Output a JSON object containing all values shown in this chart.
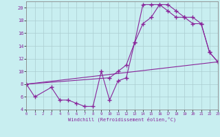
{
  "xlabel": "Windchill (Refroidissement éolien,°C)",
  "xlim": [
    0,
    23
  ],
  "ylim": [
    4,
    21
  ],
  "yticks": [
    4,
    6,
    8,
    10,
    12,
    14,
    16,
    18,
    20
  ],
  "xticks": [
    0,
    1,
    2,
    3,
    4,
    5,
    6,
    7,
    8,
    9,
    10,
    11,
    12,
    13,
    14,
    15,
    16,
    17,
    18,
    19,
    20,
    21,
    22,
    23
  ],
  "background_color": "#c8eef0",
  "grid_color": "#aaccd0",
  "line_color": "#882299",
  "curve1_x": [
    0,
    1,
    3,
    4,
    5,
    6,
    7,
    8,
    9,
    10,
    11,
    12,
    13,
    14,
    15,
    16,
    17,
    18,
    19,
    20,
    21,
    22,
    23
  ],
  "curve1_y": [
    8.0,
    6.0,
    7.5,
    5.5,
    5.5,
    5.0,
    4.5,
    4.5,
    10.0,
    5.5,
    8.5,
    9.0,
    14.5,
    17.5,
    18.5,
    20.5,
    20.5,
    19.5,
    18.5,
    17.5,
    17.5,
    13.0,
    11.5
  ],
  "curve2_x": [
    0,
    23
  ],
  "curve2_y": [
    8.0,
    11.5
  ],
  "curve3_x": [
    0,
    10,
    11,
    12,
    13,
    14,
    15,
    16,
    17,
    18,
    19,
    20,
    21,
    22,
    23
  ],
  "curve3_y": [
    8.0,
    9.0,
    10.0,
    11.0,
    14.5,
    20.5,
    20.5,
    20.5,
    19.5,
    18.5,
    18.5,
    18.5,
    17.5,
    13.0,
    11.5
  ]
}
